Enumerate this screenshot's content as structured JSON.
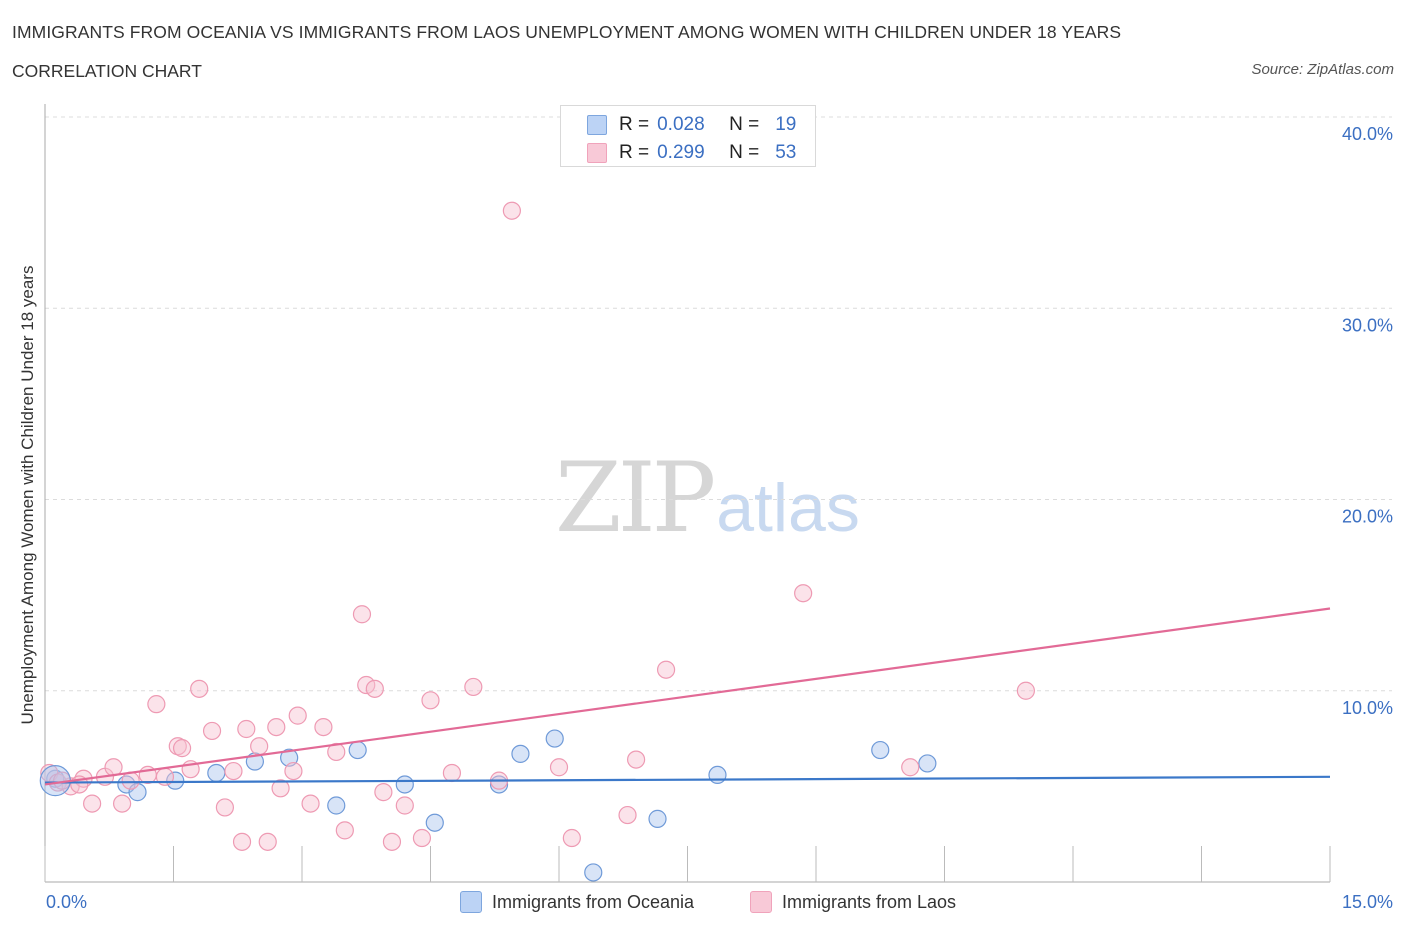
{
  "chart_data": {
    "type": "scatter",
    "title": "IMMIGRANTS FROM OCEANIA VS IMMIGRANTS FROM LAOS UNEMPLOYMENT AMONG WOMEN WITH CHILDREN UNDER 18 YEARS",
    "subtitle": "CORRELATION CHART",
    "source": "Source: ZipAtlas.com",
    "xlabel": "",
    "ylabel": "Unemployment Among Women with Children Under 18 years",
    "xlim": [
      0,
      15
    ],
    "ylim": [
      0,
      40
    ],
    "x_tick_labels": [
      {
        "value": 0,
        "label": "0.0%"
      },
      {
        "value": 15,
        "label": "15.0%"
      }
    ],
    "y_tick_labels": [
      {
        "value": 10,
        "label": "10.0%"
      },
      {
        "value": 20,
        "label": "20.0%"
      },
      {
        "value": 30,
        "label": "30.0%"
      },
      {
        "value": 40,
        "label": "40.0%"
      }
    ],
    "grid": true,
    "legend_position": "top-center",
    "series": [
      {
        "name": "Immigrants from Oceania",
        "color": "#a9c4ee",
        "edge_color": "#6f9ad8",
        "line_color": "#3b78c9",
        "R": "0.028",
        "N": "19",
        "trend": {
          "x0": 0,
          "y0": 5.2,
          "x1": 15,
          "y1": 5.5
        },
        "points": [
          [
            0.12,
            5.4
          ],
          [
            0.95,
            5.1
          ],
          [
            1.08,
            4.7
          ],
          [
            1.52,
            5.3
          ],
          [
            2.0,
            5.7
          ],
          [
            2.45,
            6.3
          ],
          [
            2.85,
            6.5
          ],
          [
            3.4,
            4.0
          ],
          [
            3.65,
            6.9
          ],
          [
            4.2,
            5.1
          ],
          [
            4.55,
            3.1
          ],
          [
            5.3,
            5.1
          ],
          [
            5.55,
            6.7
          ],
          [
            5.95,
            7.5
          ],
          [
            6.4,
            0.5
          ],
          [
            7.15,
            3.3
          ],
          [
            7.85,
            5.6
          ],
          [
            9.75,
            6.9
          ],
          [
            10.3,
            6.2
          ]
        ]
      },
      {
        "name": "Immigrants from Laos",
        "color": "#f6c0d0",
        "edge_color": "#ee9ab3",
        "line_color": "#e26a96",
        "R": "0.299",
        "N": "53",
        "trend": {
          "x0": 0,
          "y0": 5.1,
          "x1": 15,
          "y1": 14.3
        },
        "points": [
          [
            0.05,
            5.7
          ],
          [
            0.15,
            5.2
          ],
          [
            0.3,
            5.0
          ],
          [
            0.45,
            5.4
          ],
          [
            0.55,
            4.1
          ],
          [
            0.7,
            5.5
          ],
          [
            0.8,
            6.0
          ],
          [
            0.9,
            4.1
          ],
          [
            1.0,
            5.3
          ],
          [
            1.2,
            5.6
          ],
          [
            1.3,
            9.3
          ],
          [
            1.4,
            5.5
          ],
          [
            1.55,
            7.1
          ],
          [
            1.6,
            7.0
          ],
          [
            1.7,
            5.9
          ],
          [
            1.8,
            10.1
          ],
          [
            1.95,
            7.9
          ],
          [
            2.1,
            3.9
          ],
          [
            2.2,
            5.8
          ],
          [
            2.3,
            2.1
          ],
          [
            2.35,
            8.0
          ],
          [
            2.5,
            7.1
          ],
          [
            2.6,
            2.1
          ],
          [
            2.7,
            8.1
          ],
          [
            2.75,
            4.9
          ],
          [
            2.9,
            5.8
          ],
          [
            2.95,
            8.7
          ],
          [
            3.1,
            4.1
          ],
          [
            3.25,
            8.1
          ],
          [
            3.4,
            6.8
          ],
          [
            3.5,
            2.7
          ],
          [
            3.7,
            14.0
          ],
          [
            3.75,
            10.3
          ],
          [
            3.85,
            10.1
          ],
          [
            3.95,
            4.7
          ],
          [
            4.05,
            2.1
          ],
          [
            4.2,
            4.0
          ],
          [
            4.4,
            2.3
          ],
          [
            4.5,
            9.5
          ],
          [
            4.75,
            5.7
          ],
          [
            5.0,
            10.2
          ],
          [
            5.3,
            5.3
          ],
          [
            5.45,
            35.1
          ],
          [
            6.0,
            6.0
          ],
          [
            6.15,
            2.3
          ],
          [
            6.8,
            3.5
          ],
          [
            6.9,
            6.4
          ],
          [
            7.25,
            11.1
          ],
          [
            8.85,
            15.1
          ],
          [
            10.1,
            6.0
          ],
          [
            11.45,
            10.0
          ],
          [
            0.2,
            5.3
          ],
          [
            0.4,
            5.1
          ]
        ]
      }
    ],
    "watermark": {
      "zip": "ZIP",
      "atlas": "atlas"
    }
  },
  "legend": {
    "r_label": "R =",
    "n_label": "N =",
    "rows": [
      {
        "r": "0.028",
        "n": "19"
      },
      {
        "r": "0.299",
        "n": "53"
      }
    ]
  },
  "bottom_legend": [
    "Immigrants from Oceania",
    "Immigrants from Laos"
  ]
}
